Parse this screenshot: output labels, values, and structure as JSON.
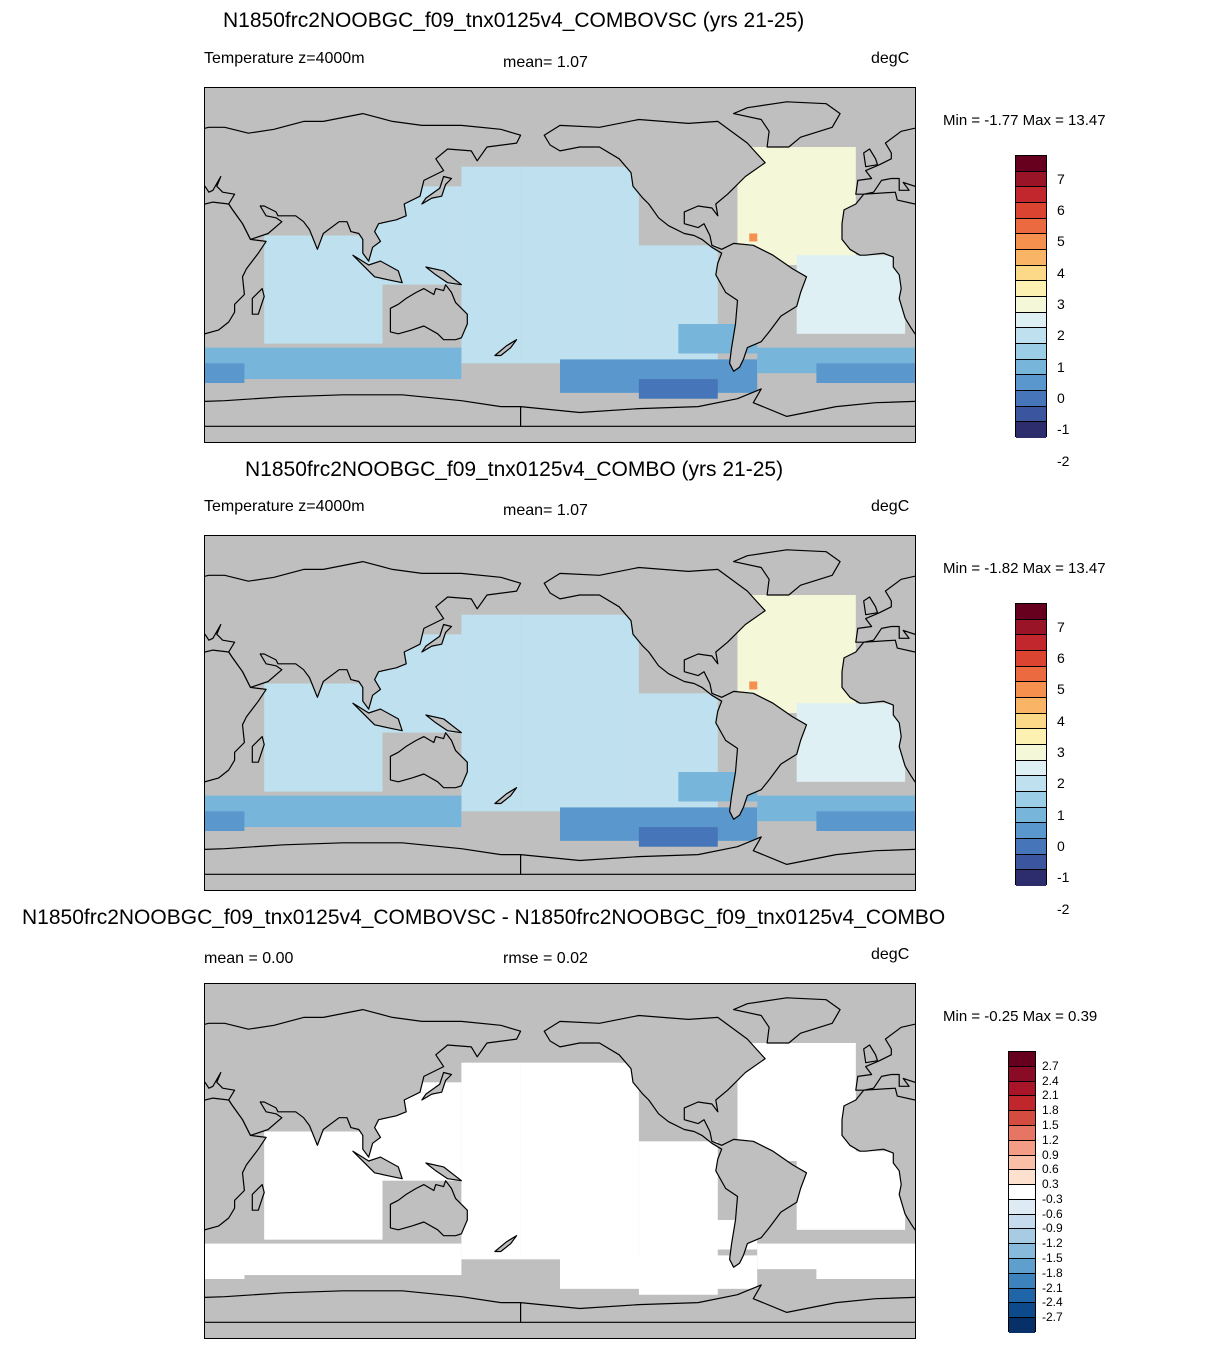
{
  "panels": [
    {
      "title": "N1850frc2NOOBGC_f09_tnx0125v4_COMBOVSC (yrs 21-25)",
      "variable": "Temperature z=4000m",
      "stat": "mean=   1.07",
      "units": "degC",
      "minmax": "Min =  -1.77 Max =  13.47",
      "colorbar": {
        "colors": [
          "#67001f",
          "#9a1428",
          "#c1272d",
          "#db4430",
          "#ec6a3f",
          "#f6904f",
          "#f9b466",
          "#fcd889",
          "#fdf1b1",
          "#f4f8d9",
          "#dff0f5",
          "#bfe0ee",
          "#9ccde6",
          "#78b5da",
          "#5a97cc",
          "#4676b9",
          "#3b569e",
          "#2d2c6c"
        ],
        "labels": [
          "7",
          "6",
          "5",
          "4",
          "3",
          "2",
          "1",
          "0",
          "-1",
          "-2"
        ]
      },
      "field_colors": {
        "deep": "#bfe0ee",
        "mid": "#dff0f5",
        "warm": "#f4f8d9",
        "cold": "#78b5da",
        "colder": "#5a97cc",
        "coldest": "#4676b9",
        "hot": "#f6904f"
      }
    },
    {
      "title": "N1850frc2NOOBGC_f09_tnx0125v4_COMBO (yrs 21-25)",
      "variable": "Temperature z=4000m",
      "stat": "mean=   1.07",
      "units": "degC",
      "minmax": "Min =  -1.82 Max =  13.47",
      "colorbar": {
        "colors": [
          "#67001f",
          "#9a1428",
          "#c1272d",
          "#db4430",
          "#ec6a3f",
          "#f6904f",
          "#f9b466",
          "#fcd889",
          "#fdf1b1",
          "#f4f8d9",
          "#dff0f5",
          "#bfe0ee",
          "#9ccde6",
          "#78b5da",
          "#5a97cc",
          "#4676b9",
          "#3b569e",
          "#2d2c6c"
        ],
        "labels": [
          "7",
          "6",
          "5",
          "4",
          "3",
          "2",
          "1",
          "0",
          "-1",
          "-2"
        ]
      },
      "field_colors": {
        "deep": "#bfe0ee",
        "mid": "#dff0f5",
        "warm": "#f4f8d9",
        "cold": "#78b5da",
        "colder": "#5a97cc",
        "coldest": "#4676b9",
        "hot": "#f6904f"
      }
    },
    {
      "title": "N1850frc2NOOBGC_f09_tnx0125v4_COMBOVSC - N1850frc2NOOBGC_f09_tnx0125v4_COMBO",
      "stat_left": "mean =   0.00",
      "stat": "rmse =   0.02",
      "units": "degC",
      "minmax": "Min =  -0.25 Max =   0.39",
      "colorbar": {
        "colors": [
          "#67001f",
          "#8a0b25",
          "#a81529",
          "#c0272d",
          "#d44b3f",
          "#e67563",
          "#f39c86",
          "#f9c0a7",
          "#fde0cd",
          "#ffffff",
          "#deebf4",
          "#c6dbed",
          "#a7cbe2",
          "#87b9da",
          "#5f9fcd",
          "#3c82bd",
          "#2165a9",
          "#0d4a8c",
          "#083068"
        ],
        "labels": [
          "2.7",
          "2.4",
          "2.1",
          "1.8",
          "1.5",
          "1.2",
          "0.9",
          "0.6",
          "0.3",
          "-0.3",
          "-0.6",
          "-0.9",
          "-1.2",
          "-1.5",
          "-1.8",
          "-2.1",
          "-2.4",
          "-2.7"
        ]
      },
      "field_colors": {
        "deep": "#ffffff",
        "mid": "#ffffff",
        "warm": "#ffffff",
        "cold": "#ffffff",
        "colder": "#ffffff",
        "coldest": "#ffffff",
        "hot": "#ffffff"
      }
    }
  ]
}
